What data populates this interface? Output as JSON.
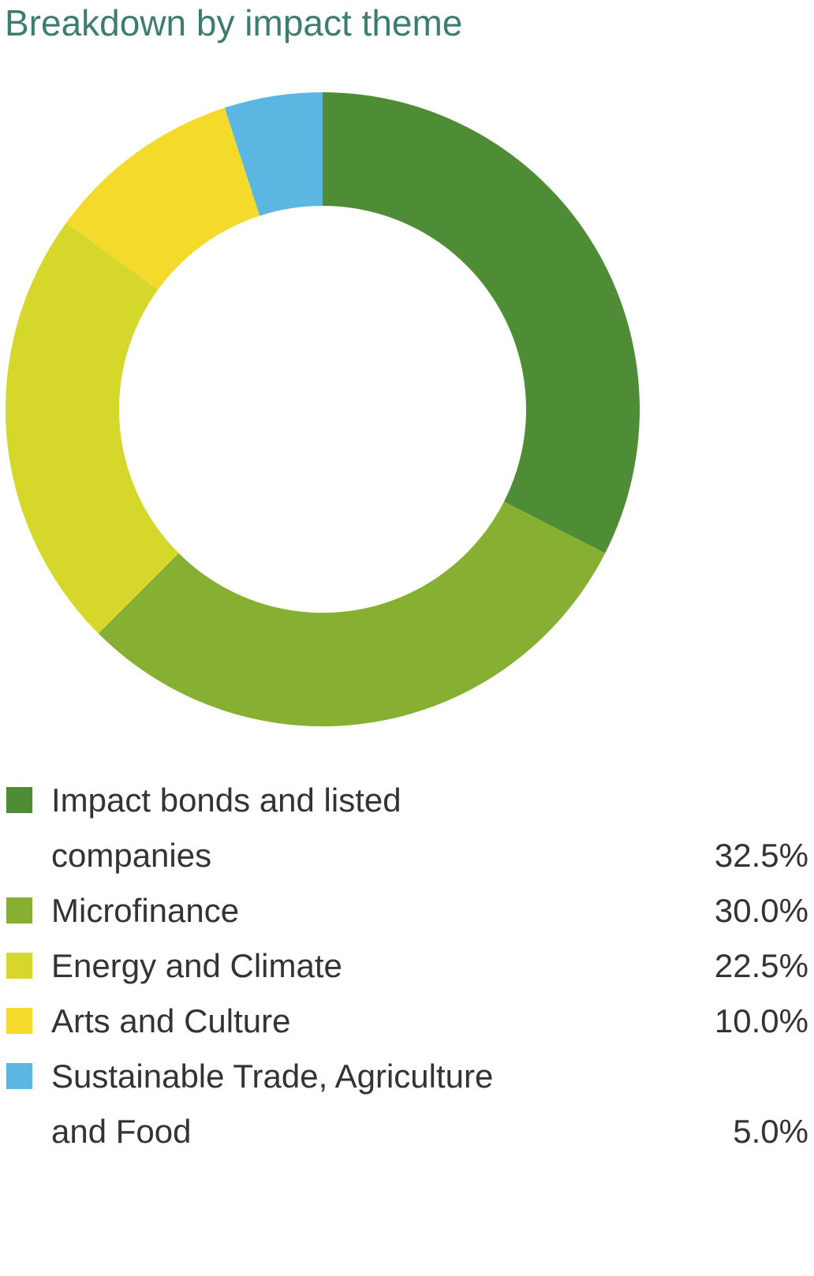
{
  "chart_data": {
    "type": "pie",
    "title": "Breakdown by impact theme",
    "categories": [
      "Impact bonds and listed companies",
      "Microfinance",
      "Energy and Climate",
      "Arts and Culture",
      "Sustainable Trade, Agriculture and Food"
    ],
    "values": [
      32.5,
      30.0,
      22.5,
      10.0,
      5.0
    ],
    "value_labels": [
      "32.5%",
      "30.0%",
      "22.5%",
      "10.0%",
      "5.0%"
    ],
    "colors": [
      "#4f8c36",
      "#87b032",
      "#d5d82b",
      "#f4da2a",
      "#5cb6e2"
    ]
  }
}
